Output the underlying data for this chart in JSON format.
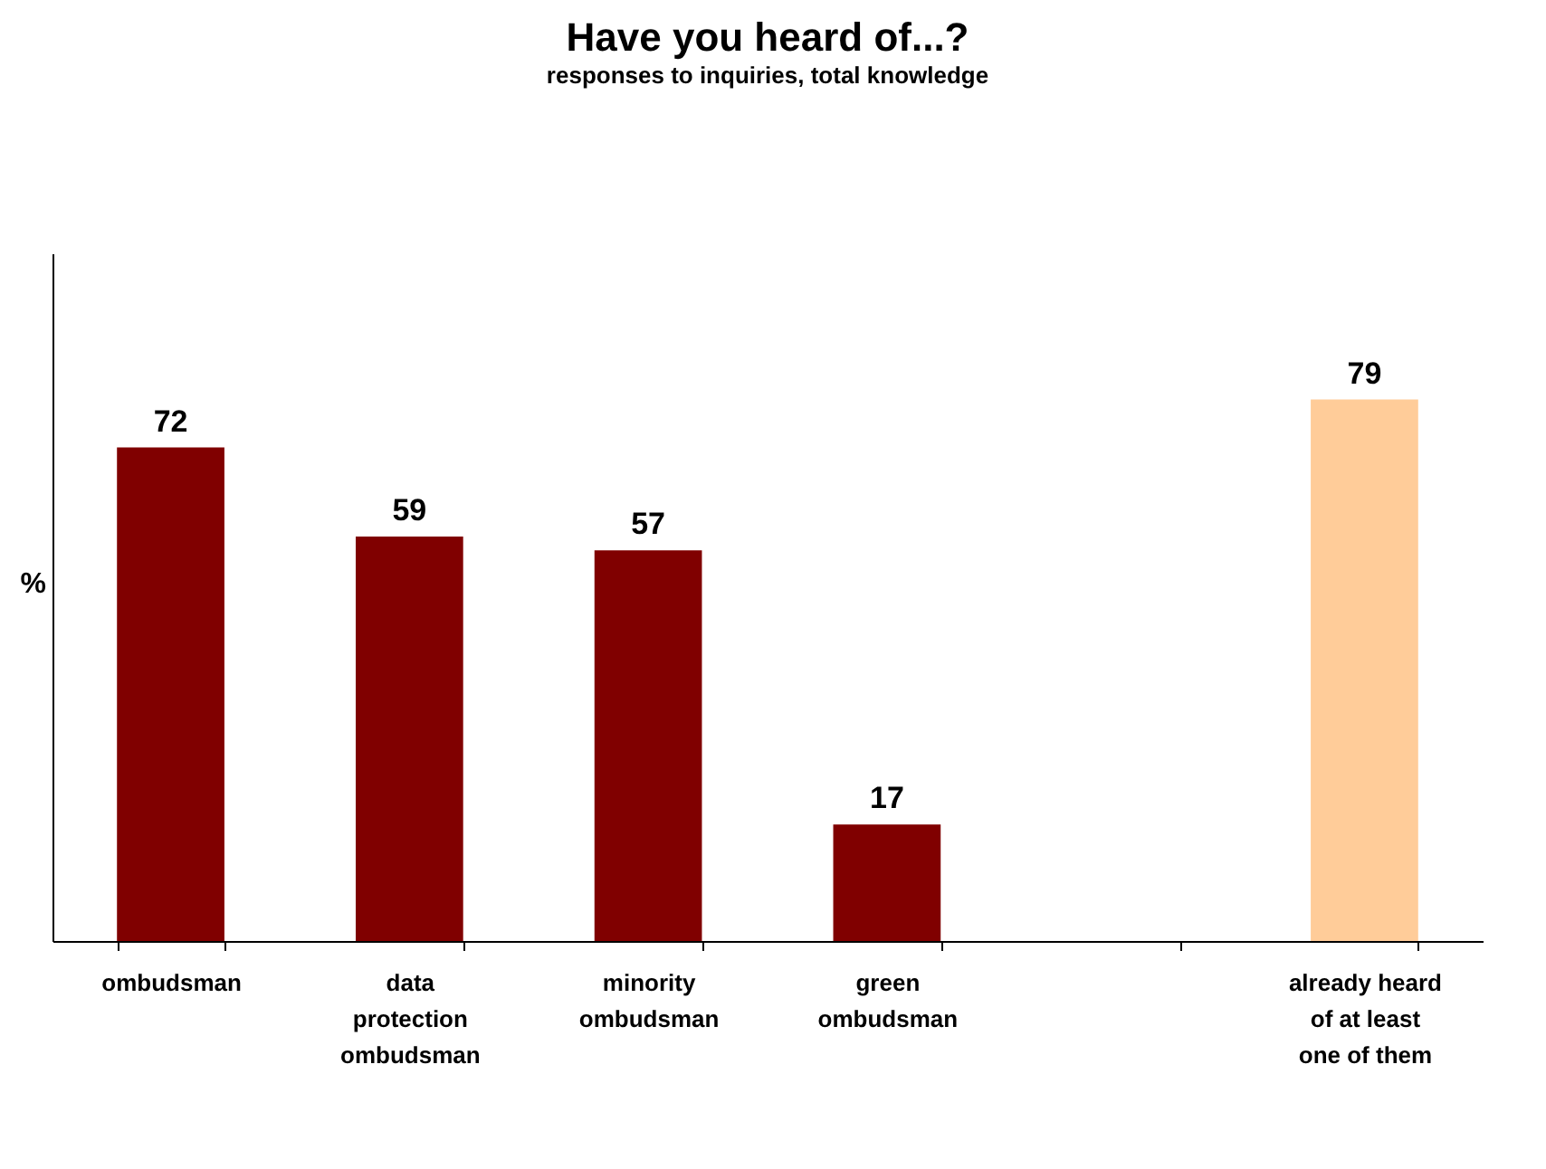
{
  "chart_data": {
    "type": "bar",
    "title": "Have you heard of...?",
    "subtitle": "responses to inquiries, total knowledge",
    "ylabel": "%",
    "categories": [
      "ombudsman",
      "data protection ombudsman",
      "minority ombudsman",
      "green ombudsman",
      null,
      "already heard of at least one of them"
    ],
    "values": [
      72,
      59,
      57,
      17,
      null,
      79
    ],
    "colors": [
      "#800000",
      "#800000",
      "#800000",
      "#800000",
      "#800000",
      "#ffcc99"
    ],
    "data_labels": true,
    "tick_labels": "x"
  }
}
